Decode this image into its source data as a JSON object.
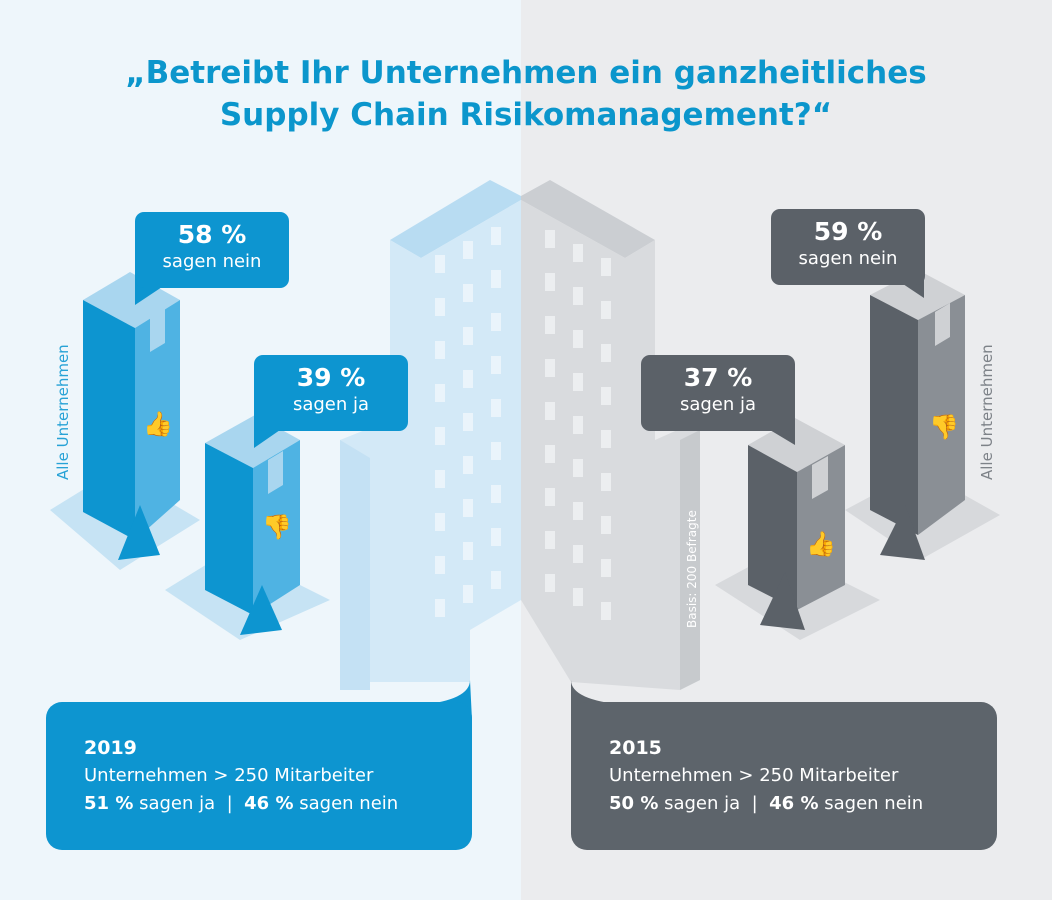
{
  "title": {
    "line1": "„Betreibt Ihr Unternehmen ein ganzheitliches",
    "line2": "Supply Chain Risikomanagement?“"
  },
  "left": {
    "side_label": "Alle Unternehmen",
    "bubble_nein": {
      "pct": "58 %",
      "label": "sagen nein"
    },
    "bubble_ja": {
      "pct": "39 %",
      "label": "sagen ja"
    },
    "card": {
      "year": "2019",
      "subtitle": "Unternehmen > 250 Mitarbeiter",
      "ja_pct": "51 %",
      "ja_label": "sagen ja",
      "sep": "|",
      "nein_pct": "46 %",
      "nein_label": "sagen nein"
    }
  },
  "right": {
    "side_label": "Alle Unternehmen",
    "basis": "Basis: 200 Befragte",
    "bubble_ja": {
      "pct": "37 %",
      "label": "sagen ja"
    },
    "bubble_nein": {
      "pct": "59 %",
      "label": "sagen nein"
    },
    "card": {
      "year": "2015",
      "subtitle": "Unternehmen > 250 Mitarbeiter",
      "ja_pct": "50 %",
      "ja_label": "sagen ja",
      "sep": "|",
      "nein_pct": "46 %",
      "nein_label": "sagen nein"
    }
  },
  "colors": {
    "blue": "#0d95d0",
    "grey": "#5b6168",
    "title": "#0b96cc"
  },
  "chart_data": {
    "type": "bar",
    "title": "„Betreibt Ihr Unternehmen ein ganzheitliches Supply Chain Risikomanagement?“",
    "categories": [
      "sagen nein",
      "sagen ja"
    ],
    "series": [
      {
        "name": "2019 Alle Unternehmen",
        "values": [
          58,
          39
        ]
      },
      {
        "name": "2015 Alle Unternehmen",
        "values": [
          59,
          37
        ]
      },
      {
        "name": "2019 Unternehmen > 250 Mitarbeiter",
        "values": [
          46,
          51
        ]
      },
      {
        "name": "2015 Unternehmen > 250 Mitarbeiter",
        "values": [
          46,
          50
        ]
      }
    ],
    "unit": "%",
    "note": "Basis: 200 Befragte"
  }
}
